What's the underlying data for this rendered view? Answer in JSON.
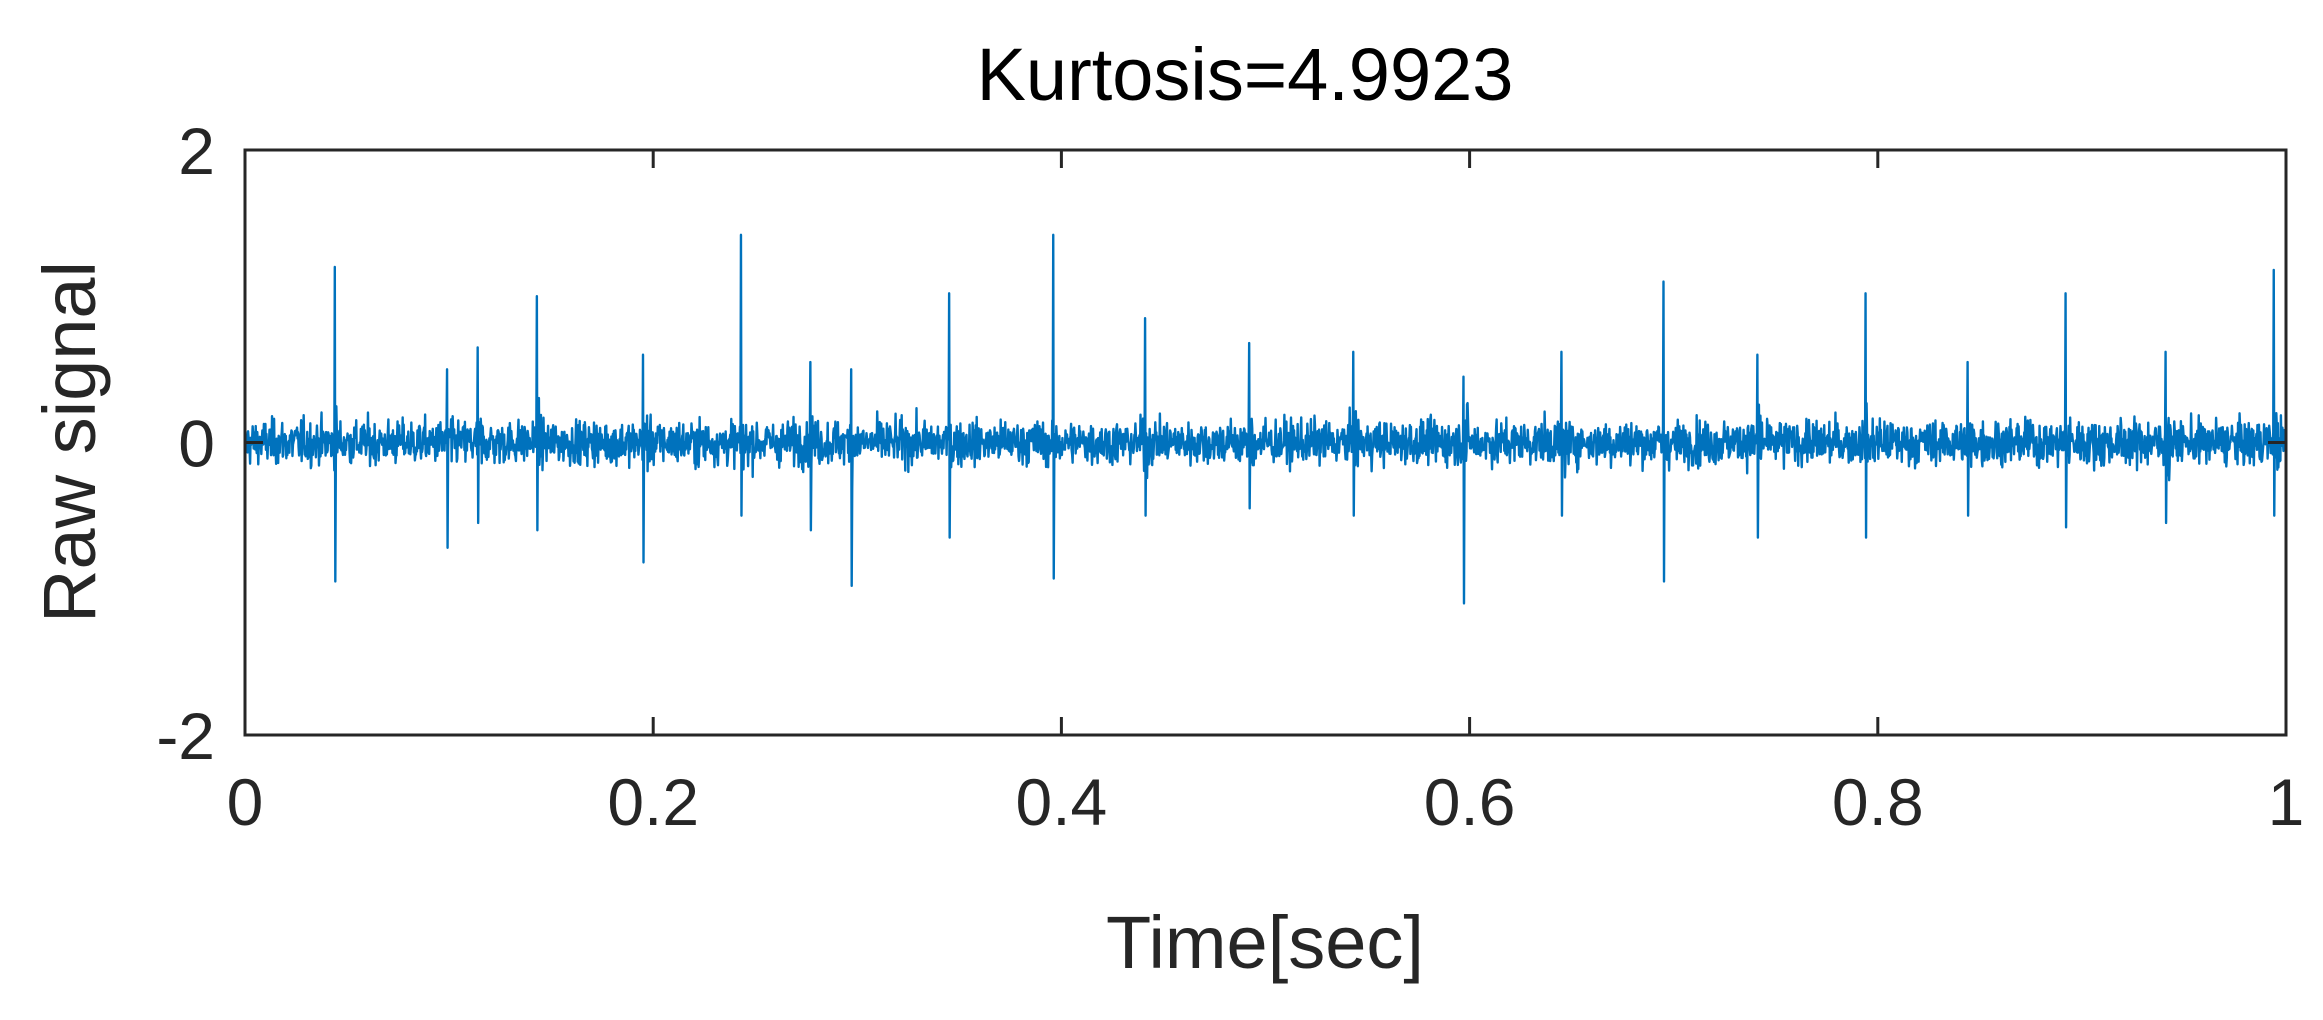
{
  "chart_data": {
    "type": "line",
    "title": "Kurtosis=4.9923",
    "xlabel": "Time[sec]",
    "ylabel": "Raw signal",
    "xlim": [
      0,
      1
    ],
    "ylim": [
      -2,
      2
    ],
    "xticks": [
      0,
      0.2,
      0.4,
      0.6,
      0.8,
      1
    ],
    "xtick_labels": [
      "0",
      "0.2",
      "0.4",
      "0.6",
      "0.8",
      "1"
    ],
    "yticks": [
      -2,
      0,
      2
    ],
    "ytick_labels": [
      "-2",
      "0",
      "2"
    ],
    "grid": false,
    "box": true,
    "series": [
      {
        "color": "#0072BD",
        "noise_level": 0.25,
        "impulses": [
          {
            "x": 0.044,
            "up": 1.2,
            "down": -0.95
          },
          {
            "x": 0.099,
            "up": 0.5,
            "down": -0.72
          },
          {
            "x": 0.114,
            "up": 0.65,
            "down": -0.55
          },
          {
            "x": 0.143,
            "up": 1.0,
            "down": -0.6
          },
          {
            "x": 0.195,
            "up": 0.6,
            "down": -0.82
          },
          {
            "x": 0.243,
            "up": 1.42,
            "down": -0.5
          },
          {
            "x": 0.277,
            "up": 0.55,
            "down": -0.6
          },
          {
            "x": 0.297,
            "up": 0.5,
            "down": -0.98
          },
          {
            "x": 0.345,
            "up": 1.02,
            "down": -0.65
          },
          {
            "x": 0.396,
            "up": 1.42,
            "down": -0.93
          },
          {
            "x": 0.441,
            "up": 0.85,
            "down": -0.5
          },
          {
            "x": 0.492,
            "up": 0.68,
            "down": -0.45
          },
          {
            "x": 0.543,
            "up": 0.62,
            "down": -0.5
          },
          {
            "x": 0.597,
            "up": 0.45,
            "down": -1.1
          },
          {
            "x": 0.645,
            "up": 0.62,
            "down": -0.5
          },
          {
            "x": 0.695,
            "up": 1.1,
            "down": -0.95
          },
          {
            "x": 0.741,
            "up": 0.6,
            "down": -0.65
          },
          {
            "x": 0.794,
            "up": 1.02,
            "down": -0.65
          },
          {
            "x": 0.844,
            "up": 0.55,
            "down": -0.5
          },
          {
            "x": 0.892,
            "up": 1.02,
            "down": -0.58
          },
          {
            "x": 0.941,
            "up": 0.62,
            "down": -0.55
          },
          {
            "x": 0.994,
            "up": 1.18,
            "down": -0.5
          }
        ]
      }
    ]
  }
}
